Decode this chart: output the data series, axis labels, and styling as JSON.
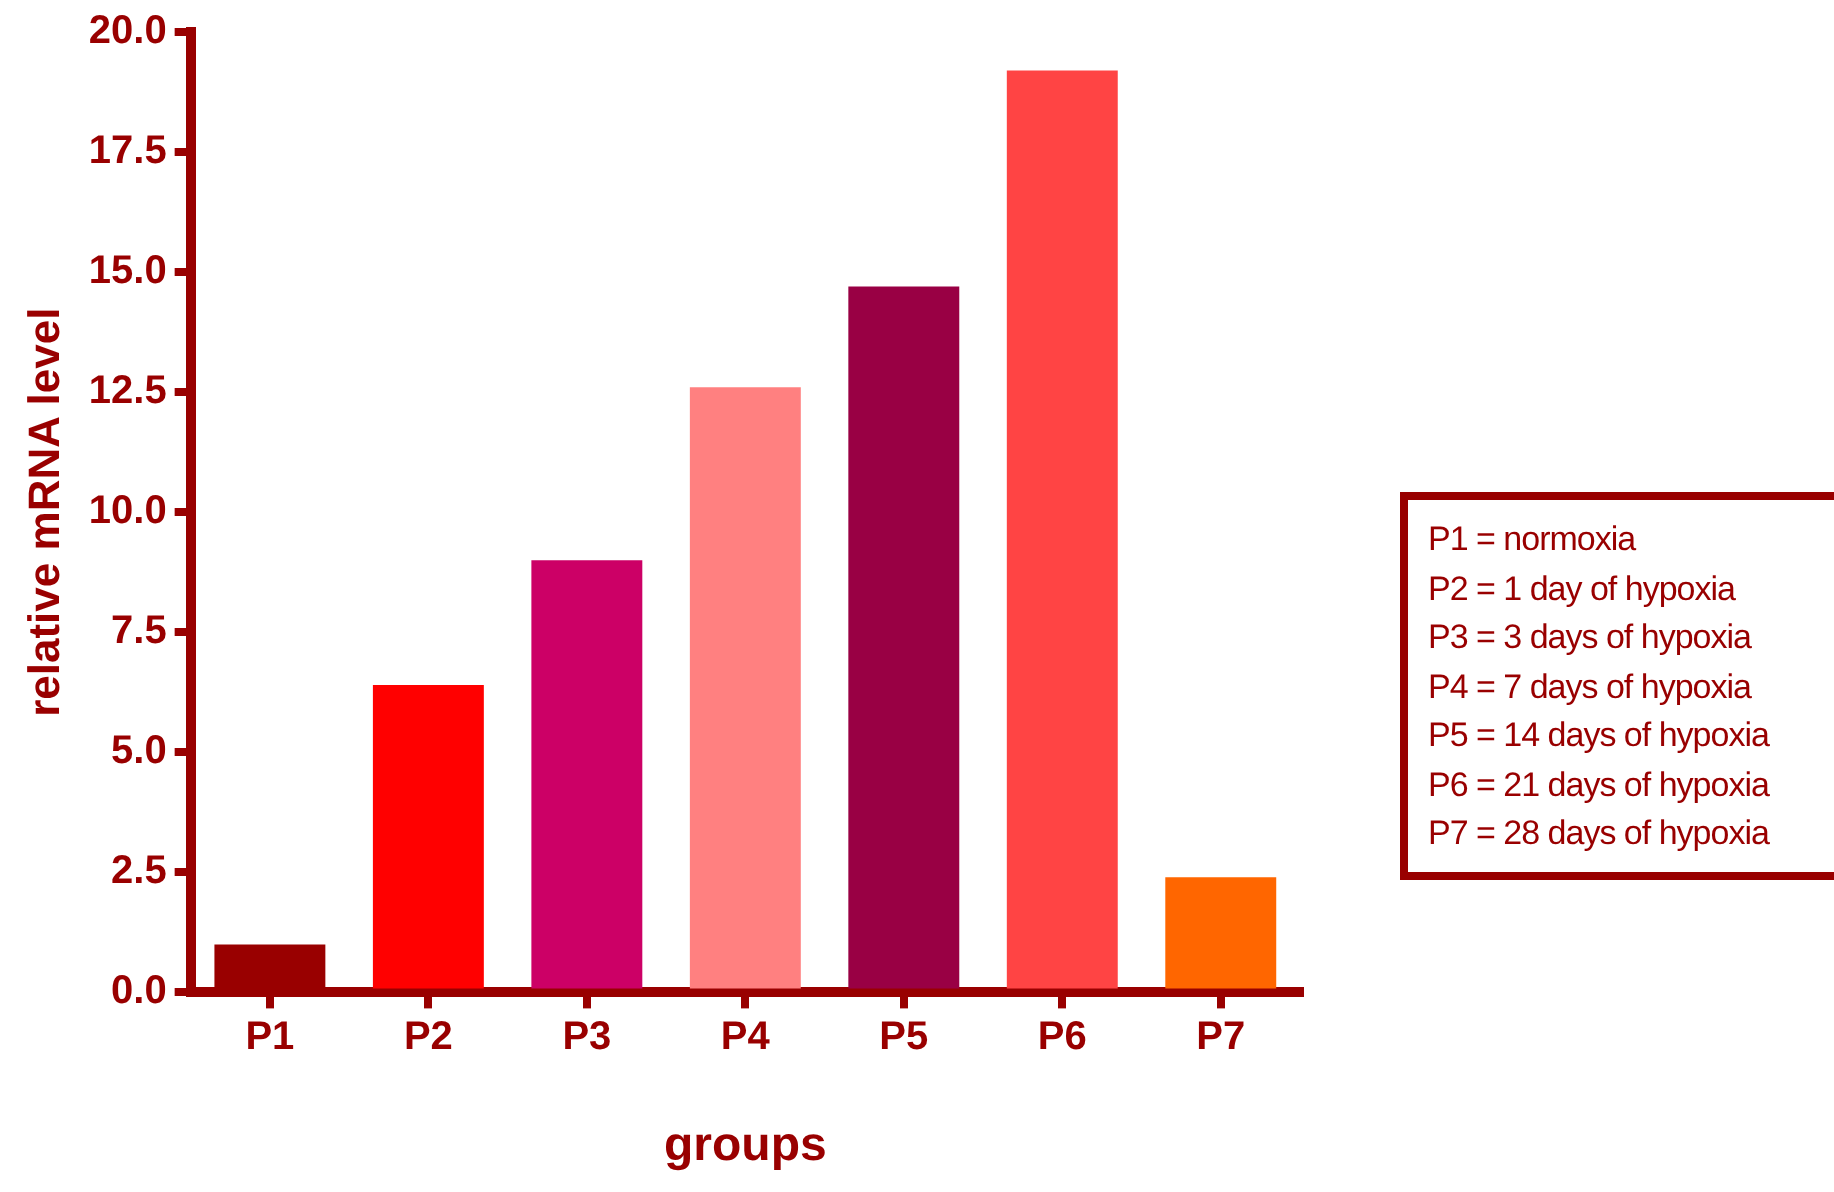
{
  "chart_data": {
    "type": "bar",
    "xlabel": "groups",
    "ylabel": "relative mRNA level",
    "categories": [
      "P1",
      "P2",
      "P3",
      "P4",
      "P5",
      "P6",
      "P7"
    ],
    "values": [
      1.0,
      6.4,
      9.0,
      12.6,
      14.7,
      19.2,
      2.4
    ],
    "colors": [
      "#990000",
      "#ff0000",
      "#cc0066",
      "#ff8080",
      "#990044",
      "#ff4444",
      "#ff6600"
    ],
    "ylim": [
      0,
      20
    ],
    "yticks": [
      {
        "value": 0,
        "label": "0.0"
      },
      {
        "value": 2.5,
        "label": "2.5"
      },
      {
        "value": 5,
        "label": "5.0"
      },
      {
        "value": 7.5,
        "label": "7.5"
      },
      {
        "value": 10,
        "label": "10.0"
      },
      {
        "value": 12.5,
        "label": "12.5"
      },
      {
        "value": 15,
        "label": "15.0"
      },
      {
        "value": 17.5,
        "label": "17.5"
      },
      {
        "value": 20,
        "label": "20.0"
      }
    ],
    "grid": false,
    "legend": false,
    "annotations": [
      "P1 = normoxia",
      "P2 = 1 day of hypoxia",
      "P3 = 3 days of hypoxia",
      "P4 = 7 days of hypoxia",
      "P5 = 14 days of hypoxia",
      "P6 = 21 days of hypoxia",
      "P7 = 28 days of hypoxia"
    ]
  }
}
